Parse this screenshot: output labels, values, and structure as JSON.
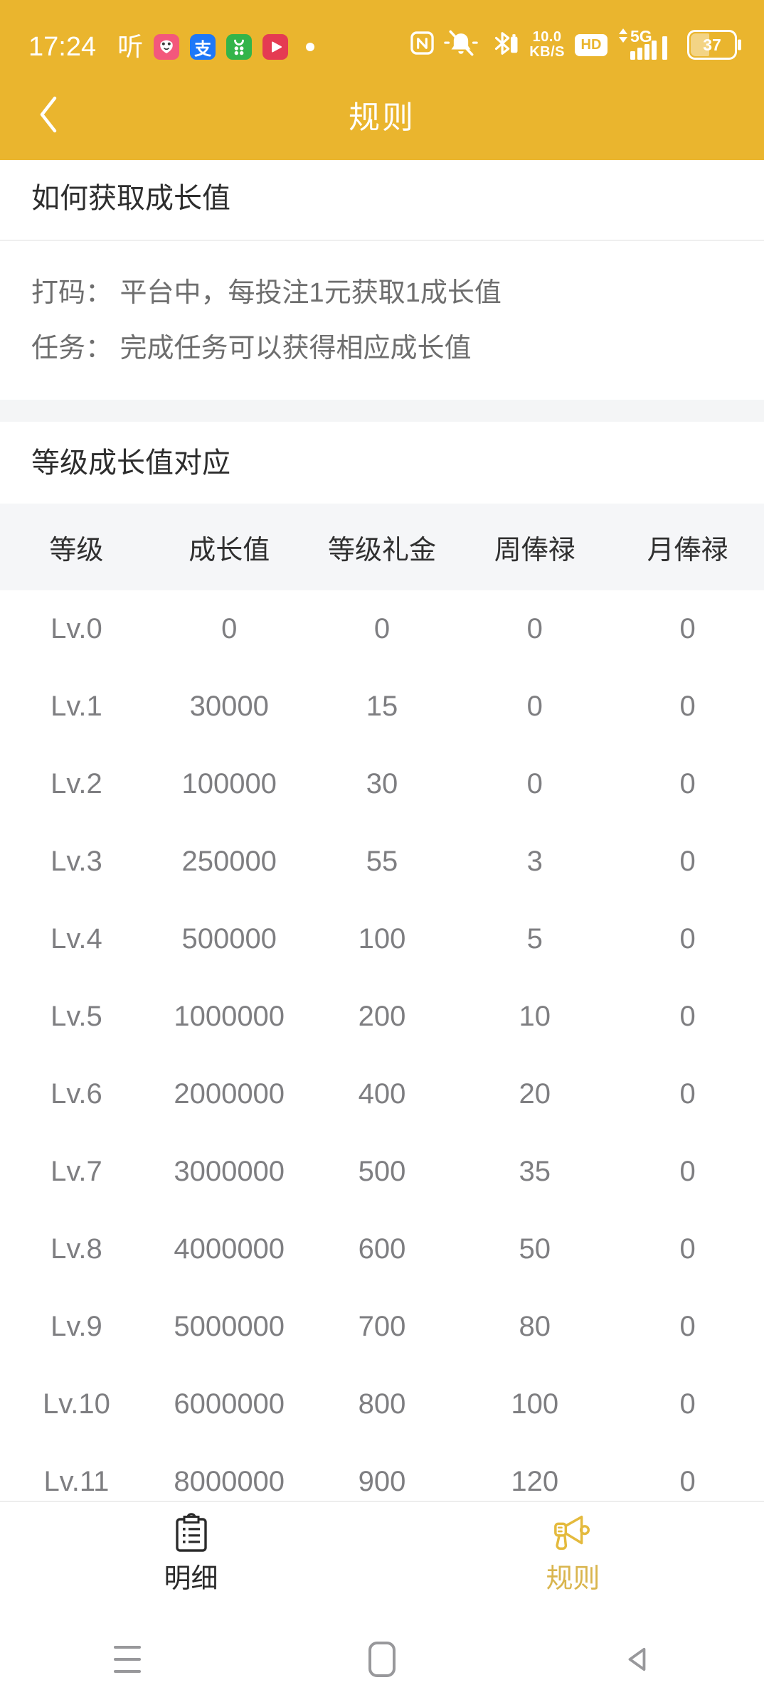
{
  "colors": {
    "brand_yellow": "#EAB52E",
    "tab_active_yellow": "#D9B54E",
    "tab_inactive_dark": "#2B2B2B"
  },
  "status_bar": {
    "time": "17:24",
    "listen_glyph": "听",
    "alipay_glyph": "支",
    "net_speed_value": "10.0",
    "net_speed_unit": "KB/S",
    "hd_label": "HD",
    "network_type": "5G",
    "battery_level": "37"
  },
  "header": {
    "title": "规则"
  },
  "growth_info": {
    "section_title": "如何获取成长值",
    "lines": [
      "打码： 平台中，每投注1元获取1成长值",
      "任务： 完成任务可以获得相应成长值"
    ]
  },
  "levels": {
    "section_title": "等级成长值对应",
    "headers": [
      "等级",
      "成长值",
      "等级礼金",
      "周俸禄",
      "月俸禄"
    ],
    "rows": [
      [
        "Lv.0",
        "0",
        "0",
        "0",
        "0"
      ],
      [
        "Lv.1",
        "30000",
        "15",
        "0",
        "0"
      ],
      [
        "Lv.2",
        "100000",
        "30",
        "0",
        "0"
      ],
      [
        "Lv.3",
        "250000",
        "55",
        "3",
        "0"
      ],
      [
        "Lv.4",
        "500000",
        "100",
        "5",
        "0"
      ],
      [
        "Lv.5",
        "1000000",
        "200",
        "10",
        "0"
      ],
      [
        "Lv.6",
        "2000000",
        "400",
        "20",
        "0"
      ],
      [
        "Lv.7",
        "3000000",
        "500",
        "35",
        "0"
      ],
      [
        "Lv.8",
        "4000000",
        "600",
        "50",
        "0"
      ],
      [
        "Lv.9",
        "5000000",
        "700",
        "80",
        "0"
      ],
      [
        "Lv.10",
        "6000000",
        "800",
        "100",
        "0"
      ],
      [
        "Lv.11",
        "8000000",
        "900",
        "120",
        "0"
      ]
    ]
  },
  "tab_bar": {
    "tabs": [
      {
        "label": "明细",
        "active": false
      },
      {
        "label": "规则",
        "active": true
      }
    ]
  }
}
